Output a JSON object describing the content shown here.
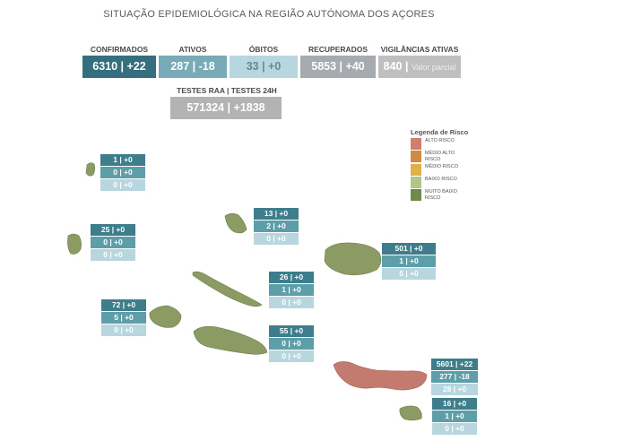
{
  "title": "SITUAÇÃO EPIDEMIOLÓGICA NA REGIÃO AUTÓNOMA DOS AÇORES",
  "kpis": {
    "confirmados": {
      "label": "CONFIRMADOS",
      "value": "6310 | +22"
    },
    "ativos": {
      "label": "ATIVOS",
      "value": "287 | -18"
    },
    "obitos": {
      "label": "ÓBITOS",
      "value": "33 | +0"
    },
    "recuperados": {
      "label": "RECUPERADOS",
      "value": "5853 | +40"
    },
    "vigilancias": {
      "label": "VIGILÂNCIAS ATIVAS",
      "value": "840 |",
      "note": "Valor parcial"
    },
    "testes": {
      "label": "TESTES RAA | TESTES 24H",
      "value": "571324 | +1838"
    }
  },
  "colors": {
    "confirmados": "#356f7d",
    "ativos": "#78aab8",
    "obitos": "#b7d6de",
    "recuperados": "#a6abb0",
    "vigilancias": "#bfbfbf",
    "testes": "#b3b3b3",
    "island_green": "#8c9a63",
    "island_red": "#c27b6e"
  },
  "legend": {
    "title": "Legenda de Risco",
    "items": [
      {
        "label": "ALTO RISCO",
        "color": "#cf7f6f"
      },
      {
        "label": "MÉDIO ALTO RISCO",
        "color": "#d48a3e"
      },
      {
        "label": "MÉDIO RISCO",
        "color": "#e2b04a"
      },
      {
        "label": "BAIXO RISCO",
        "color": "#b5c586"
      },
      {
        "label": "MUITO BAIXO RISCO",
        "color": "#6f8a4c"
      }
    ]
  },
  "islands": [
    {
      "id": "corvo",
      "l1": "1 | +0",
      "l2": "0 | +0",
      "l3": "0 | +0"
    },
    {
      "id": "flores",
      "l1": "25 | +0",
      "l2": "0 | +0",
      "l3": "0 | +0"
    },
    {
      "id": "graciosa",
      "l1": "13 | +0",
      "l2": "2 | +0",
      "l3": "0 | +0"
    },
    {
      "id": "terceira",
      "l1": "501 | +0",
      "l2": "1 | +0",
      "l3": "5 | +0"
    },
    {
      "id": "sao-jorge",
      "l1": "26 | +0",
      "l2": "1 | +0",
      "l3": "0 | +0"
    },
    {
      "id": "faial",
      "l1": "72 | +0",
      "l2": "5 | +0",
      "l3": "0 | +0"
    },
    {
      "id": "pico",
      "l1": "55 | +0",
      "l2": "0 | +0",
      "l3": "0 | +0"
    },
    {
      "id": "sao-miguel",
      "l1": "5601 | +22",
      "l2": "277 | -18",
      "l3": "28 | +0"
    },
    {
      "id": "santa-maria",
      "l1": "16 | +0",
      "l2": "1 | +0",
      "l3": "0 | +0"
    }
  ]
}
